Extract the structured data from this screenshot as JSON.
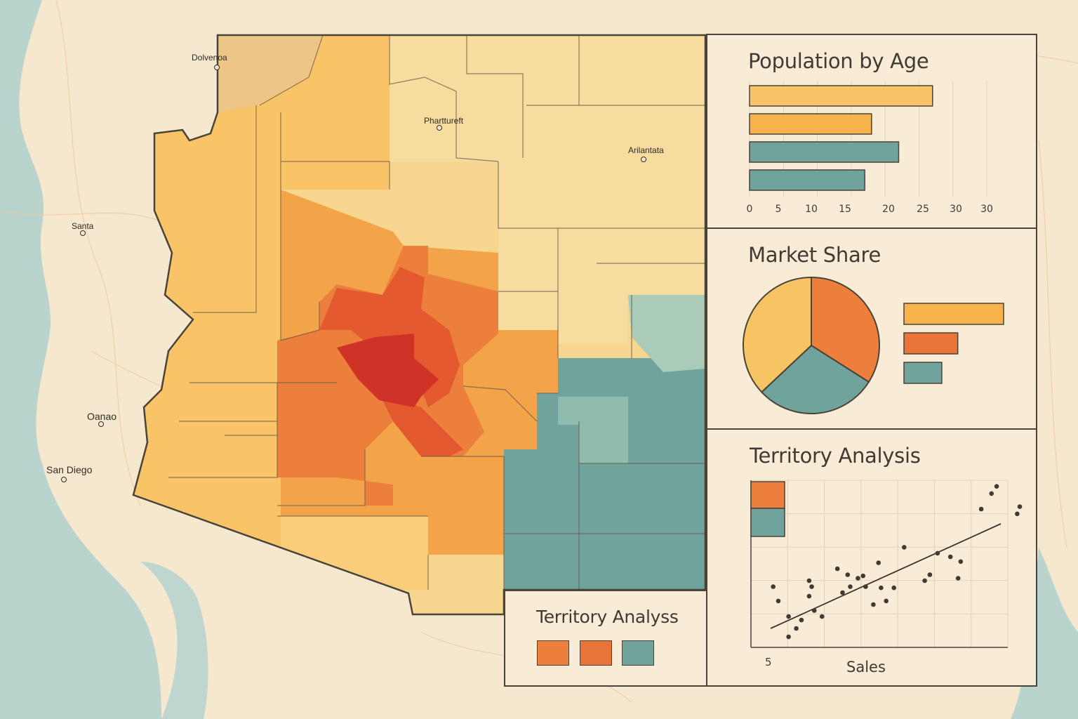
{
  "cities": [
    {
      "name": "Dolvenoa"
    },
    {
      "name": "Pharttureft"
    },
    {
      "name": "Arilantata"
    },
    {
      "name": "Santa"
    },
    {
      "name": "Oanao"
    },
    {
      "name": "San Diego"
    }
  ],
  "colors": {
    "light": "#f7d78f",
    "yellow": "#f8c467",
    "orange": "#f3a348",
    "dark_orange": "#ec7f3c",
    "red_orange": "#e4592f",
    "red": "#cf3327",
    "teal": "#6fa39c",
    "light_teal": "#a9cbb8",
    "ocean": "#b9d4cd",
    "land": "#f6e8cf"
  },
  "legend_panel": {
    "title": "Territory Analyss"
  },
  "population_panel": {
    "title": "Population by Age",
    "ticks": [
      "0",
      "5",
      "10",
      "15",
      "20",
      "25",
      "30",
      "30"
    ]
  },
  "market_panel": {
    "title": "Market Share"
  },
  "territory_panel": {
    "title": "Territory Analysis",
    "x_tick": "5",
    "xlabel": "Sales"
  },
  "chart_data": [
    {
      "type": "bar",
      "title": "Population by Age",
      "orientation": "horizontal",
      "values": [
        27,
        18,
        22,
        17
      ],
      "colors": [
        "#f8c467",
        "#f8b24c",
        "#6fa39c",
        "#6fa39c"
      ],
      "xlim": [
        0,
        35
      ]
    },
    {
      "type": "pie",
      "title": "Market Share",
      "values": [
        37,
        34,
        29
      ],
      "colors": [
        "#f7c463",
        "#ec7f3c",
        "#6fa39c"
      ],
      "legend_bars": [
        1.0,
        0.54,
        0.38
      ]
    },
    {
      "type": "scatter",
      "title": "Territory Analysis",
      "xlabel": "Sales",
      "points": [
        [
          1,
          45
        ],
        [
          3,
          33
        ],
        [
          7,
          20
        ],
        [
          7,
          3
        ],
        [
          10,
          10
        ],
        [
          12,
          17
        ],
        [
          15,
          50
        ],
        [
          15,
          37
        ],
        [
          16,
          45
        ],
        [
          17,
          25
        ],
        [
          20,
          20
        ],
        [
          26,
          60
        ],
        [
          28,
          40
        ],
        [
          30,
          55
        ],
        [
          31,
          45
        ],
        [
          34,
          52
        ],
        [
          36,
          54
        ],
        [
          37,
          45
        ],
        [
          40,
          30
        ],
        [
          42,
          65
        ],
        [
          43,
          44
        ],
        [
          45,
          33
        ],
        [
          48,
          44
        ],
        [
          52,
          78
        ],
        [
          60,
          50
        ],
        [
          62,
          55
        ],
        [
          65,
          73
        ],
        [
          70,
          70
        ],
        [
          73,
          52
        ],
        [
          74,
          66
        ],
        [
          82,
          110
        ],
        [
          86,
          123
        ],
        [
          88,
          129
        ],
        [
          96,
          106
        ],
        [
          97,
          112
        ]
      ],
      "trend": [
        [
          0,
          10
        ],
        [
          100,
          120
        ]
      ],
      "xlim": [
        0,
        100
      ],
      "ylim": [
        0,
        140
      ]
    }
  ]
}
